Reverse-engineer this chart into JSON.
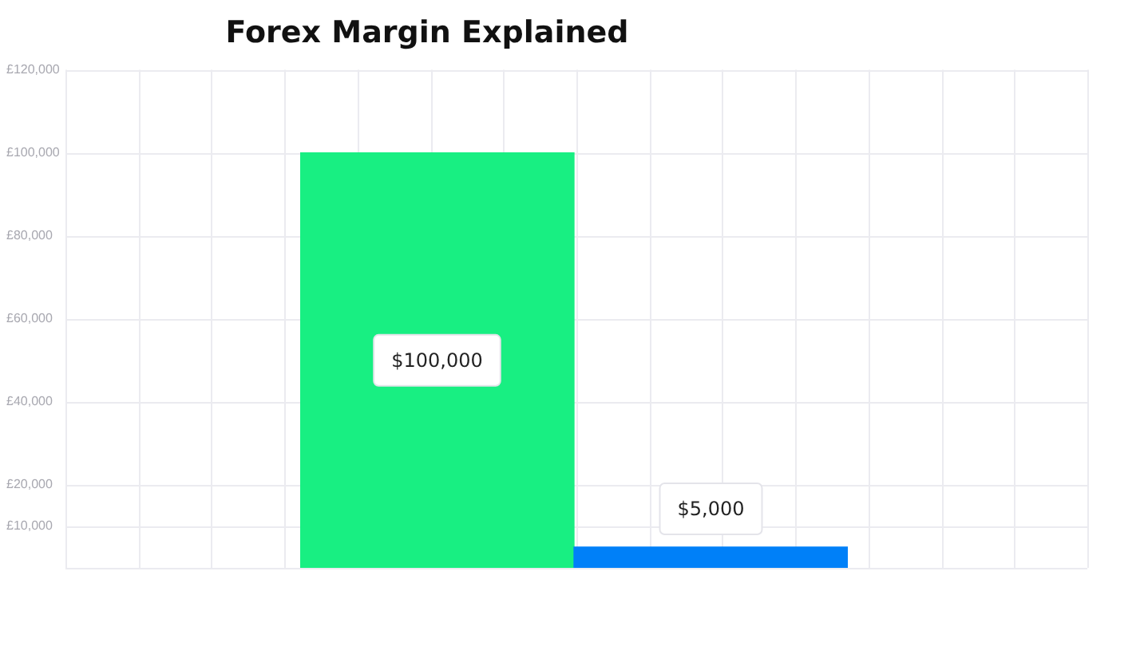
{
  "chart_data": {
    "type": "bar",
    "title": "Forex Margin Explained",
    "categories": [
      null,
      null
    ],
    "values": [
      100000,
      5000
    ],
    "colors": [
      "#18ef82",
      "#0080f8"
    ],
    "value_labels": [
      "$100,000",
      "$5,000"
    ],
    "ylim": [
      0,
      120000
    ],
    "yticks": [
      {
        "value": 0,
        "label": null
      },
      {
        "value": 10000,
        "label": "£10,000"
      },
      {
        "value": 20000,
        "label": "£20,000"
      },
      {
        "value": 40000,
        "label": "£40,000"
      },
      {
        "value": 60000,
        "label": "£60,000"
      },
      {
        "value": 80000,
        "label": "£80,000"
      },
      {
        "value": 100000,
        "label": "£100,000"
      },
      {
        "value": 120000,
        "label": "£120,000"
      }
    ],
    "grid": true,
    "tick_labels": "y"
  }
}
